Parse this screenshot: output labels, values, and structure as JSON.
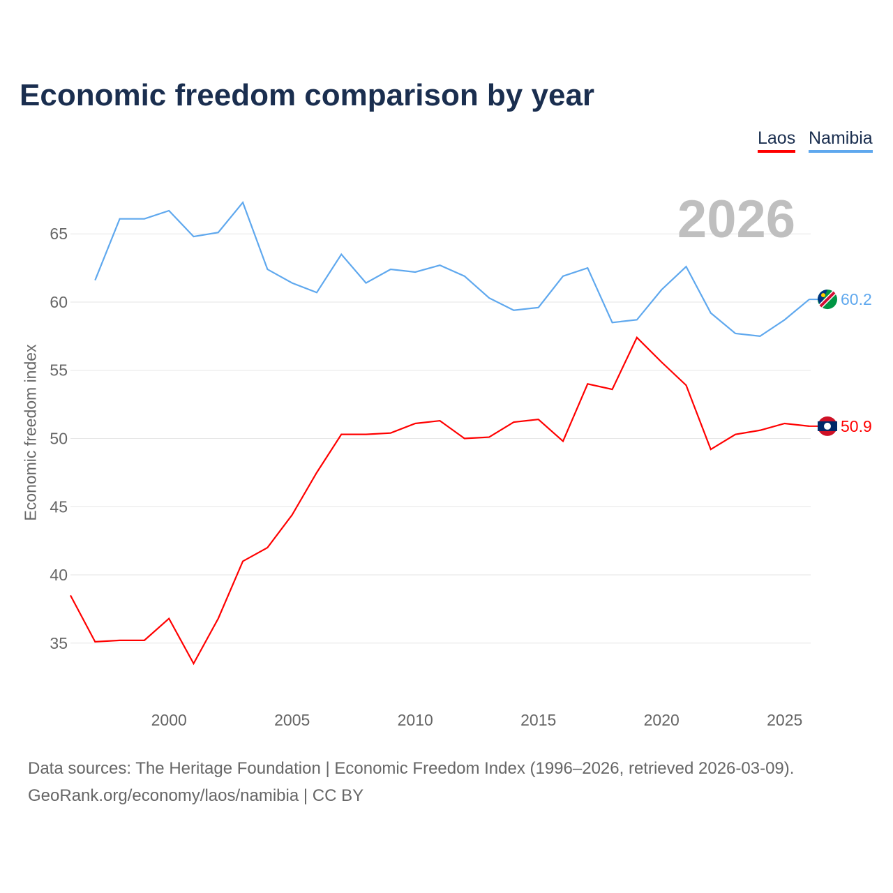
{
  "chart_data": {
    "type": "line",
    "title": "Economic freedom comparison by year",
    "ylabel": "Economic freedom index",
    "xlabel": "",
    "ylim": [
      31,
      69
    ],
    "xlim": [
      1996,
      2026
    ],
    "yticks": [
      35,
      40,
      45,
      50,
      55,
      60,
      65
    ],
    "xticks": [
      2000,
      2005,
      2010,
      2015,
      2020,
      2025
    ],
    "grid": true,
    "legend_position": "top-right",
    "year_label": "2026",
    "series": [
      {
        "name": "Laos",
        "color": "#ff0000",
        "end_label": "50.9",
        "x": [
          1996,
          1997,
          1998,
          1999,
          2000,
          2001,
          2002,
          2003,
          2004,
          2005,
          2006,
          2007,
          2008,
          2009,
          2010,
          2011,
          2012,
          2013,
          2014,
          2015,
          2016,
          2017,
          2018,
          2019,
          2020,
          2021,
          2022,
          2023,
          2024,
          2025,
          2026
        ],
        "values": [
          38.5,
          35.1,
          35.2,
          35.2,
          36.8,
          33.5,
          36.8,
          41.0,
          42.0,
          44.4,
          47.5,
          50.3,
          50.3,
          50.4,
          51.1,
          51.3,
          50.0,
          50.1,
          51.2,
          51.4,
          49.8,
          54.0,
          53.6,
          57.4,
          55.6,
          53.9,
          49.2,
          50.3,
          50.6,
          51.1,
          50.9
        ]
      },
      {
        "name": "Namibia",
        "color": "#5fa8ee",
        "end_label": "60.2",
        "x": [
          1997,
          1998,
          1999,
          2000,
          2001,
          2002,
          2003,
          2004,
          2005,
          2006,
          2007,
          2008,
          2009,
          2010,
          2011,
          2012,
          2013,
          2014,
          2015,
          2016,
          2017,
          2018,
          2019,
          2020,
          2021,
          2022,
          2023,
          2024,
          2025,
          2026
        ],
        "values": [
          61.6,
          66.1,
          66.1,
          66.7,
          64.8,
          65.1,
          67.3,
          62.4,
          61.4,
          60.7,
          63.5,
          61.4,
          62.4,
          62.2,
          62.7,
          61.9,
          60.3,
          59.4,
          59.6,
          61.9,
          62.5,
          58.5,
          58.7,
          60.9,
          62.6,
          59.2,
          57.7,
          57.5,
          58.7,
          60.2
        ]
      }
    ]
  },
  "footer": {
    "line1": "Data sources: The Heritage Foundation | Economic Freedom Index (1996–2026, retrieved 2026-03-09).",
    "line2": "GeoRank.org/economy/laos/namibia | CC BY"
  }
}
